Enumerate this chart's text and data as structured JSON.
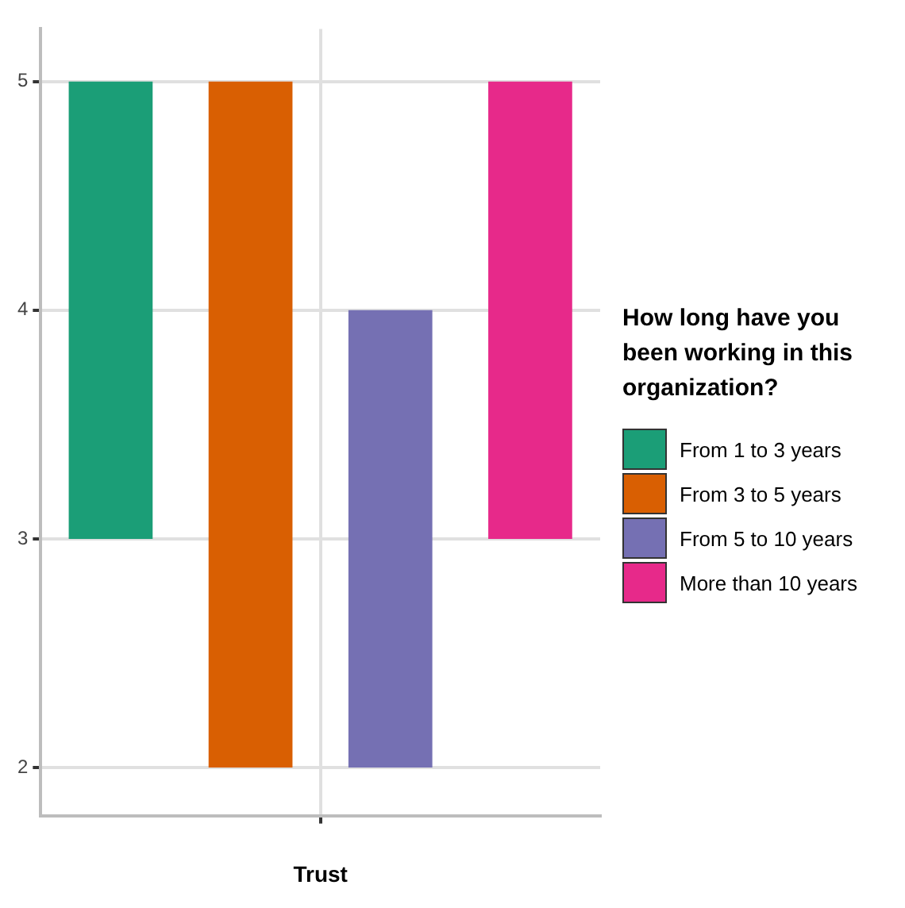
{
  "chart_data": {
    "type": "bar",
    "categories": [
      null
    ],
    "xlabel": "Trust",
    "legend_title": "How long have you been working in this organization?",
    "legend": "right",
    "grid": true,
    "ylim": [
      1.79,
      5.23
    ],
    "yticks": [
      2,
      3,
      4,
      5
    ],
    "series": [
      {
        "name": "From 1 to 3 years",
        "color": "#1b9e77",
        "base": [
          3
        ],
        "values": [
          2
        ]
      },
      {
        "name": "From 3 to 5 years",
        "color": "#d95f02",
        "base": [
          2
        ],
        "values": [
          3
        ]
      },
      {
        "name": "From 5 to 10 years",
        "color": "#7570b3",
        "base": [
          2
        ],
        "values": [
          2
        ]
      },
      {
        "name": "More than 10 years",
        "color": "#e7298a",
        "base": [
          3
        ],
        "values": [
          2
        ]
      }
    ]
  }
}
